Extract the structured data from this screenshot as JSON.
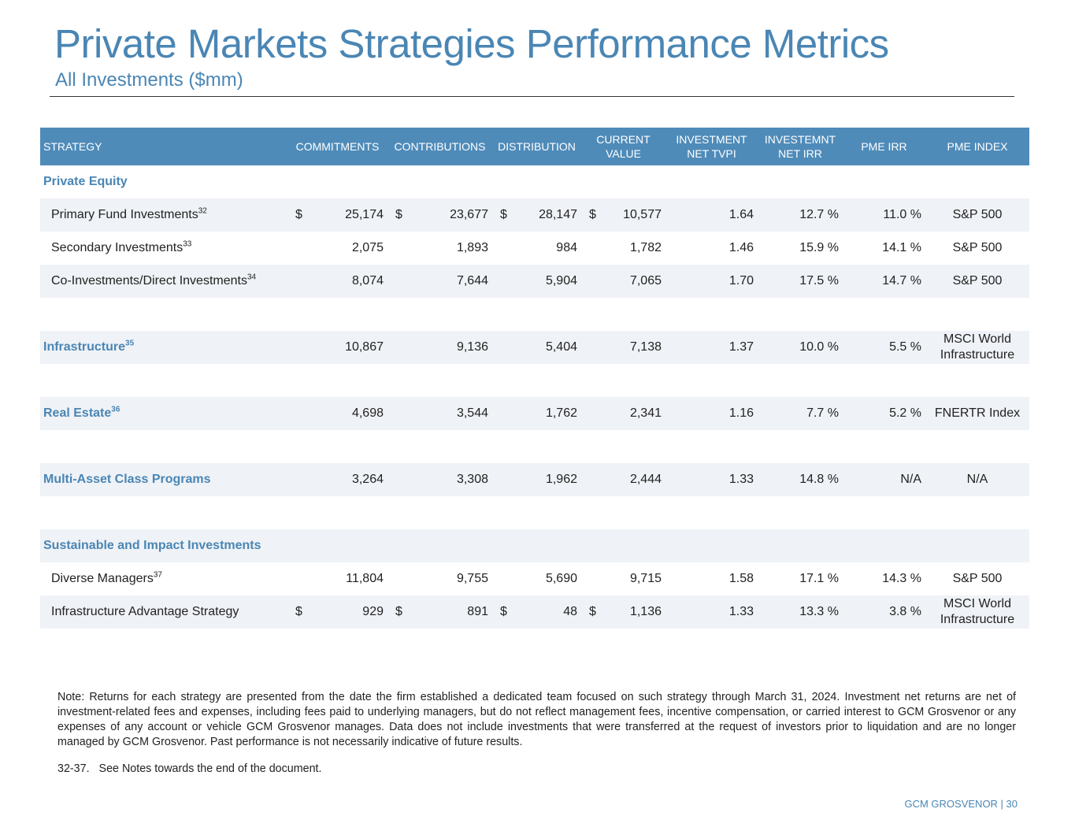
{
  "header": {
    "title": "Private Markets Strategies Performance Metrics",
    "subtitle": "All Investments ($mm)"
  },
  "table": {
    "columns": [
      "STRATEGY",
      "COMMITMENTS",
      "CONTRIBUTIONS",
      "DISTRIBUTION",
      "CURRENT VALUE",
      "INVESTMENT NET TVPI",
      "INVESTEMNT NET IRR",
      "PME IRR",
      "PME INDEX"
    ],
    "rows": [
      {
        "kind": "group",
        "label": "Private Equity"
      },
      {
        "kind": "item",
        "label": "Primary Fund Investments",
        "note": "32",
        "currency": "$",
        "values": [
          "25,174",
          "23,677",
          "28,147",
          "10,577",
          "1.64",
          "12.7 %",
          "11.0 %",
          "S&P 500"
        ]
      },
      {
        "kind": "item",
        "label": "Secondary Investments",
        "note": "33",
        "values": [
          "2,075",
          "1,893",
          "984",
          "1,782",
          "1.46",
          "15.9 %",
          "14.1 %",
          "S&P 500"
        ]
      },
      {
        "kind": "item",
        "label": "Co-Investments/Direct Investments",
        "note": "34",
        "values": [
          "8,074",
          "7,644",
          "5,904",
          "7,065",
          "1.70",
          "17.5 %",
          "14.7 %",
          "S&P 500"
        ]
      },
      {
        "kind": "group",
        "label": "Infrastructure",
        "note": "35",
        "values": [
          "10,867",
          "9,136",
          "5,404",
          "7,138",
          "1.37",
          "10.0 %",
          "5.5 %",
          "MSCI World Infrastructure"
        ]
      },
      {
        "kind": "group",
        "label": "Real Estate",
        "note": "36",
        "values": [
          "4,698",
          "3,544",
          "1,762",
          "2,341",
          "1.16",
          "7.7 %",
          "5.2 %",
          "FNERTR Index"
        ]
      },
      {
        "kind": "group",
        "label": "Multi-Asset Class Programs",
        "values": [
          "3,264",
          "3,308",
          "1,962",
          "2,444",
          "1.33",
          "14.8 %",
          "N/A",
          "N/A"
        ]
      },
      {
        "kind": "group",
        "label": "Sustainable and Impact Investments"
      },
      {
        "kind": "item",
        "label": "Diverse Managers",
        "note": "37",
        "values": [
          "11,804",
          "9,755",
          "5,690",
          "9,715",
          "1.58",
          "17.1 %",
          "14.3 %",
          "S&P 500"
        ]
      },
      {
        "kind": "item",
        "label": "Infrastructure Advantage Strategy",
        "currency": "$",
        "values": [
          "929",
          "891",
          "48",
          "1,136",
          "1.33",
          "13.3 %",
          "3.8 %",
          "MSCI World Infrastructure"
        ]
      }
    ]
  },
  "note": "Note: Returns for each strategy are presented from the date the firm established a dedicated team focused on such strategy through March 31, 2024. Investment net returns are net of investment-related fees and expenses, including fees paid to underlying managers, but do not reflect management fees, incentive compensation, or carried interest to GCM Grosvenor or any expenses of any account or vehicle GCM Grosvenor manages. Data does not include investments that were transferred at the request of investors prior to liquidation and are no longer managed by GCM Grosvenor. Past performance is not necessarily indicative of future results.",
  "footnote": {
    "number": "32-37.",
    "text": "See Notes towards the end of the document."
  },
  "footer": "GCM GROSVENOR | 30"
}
